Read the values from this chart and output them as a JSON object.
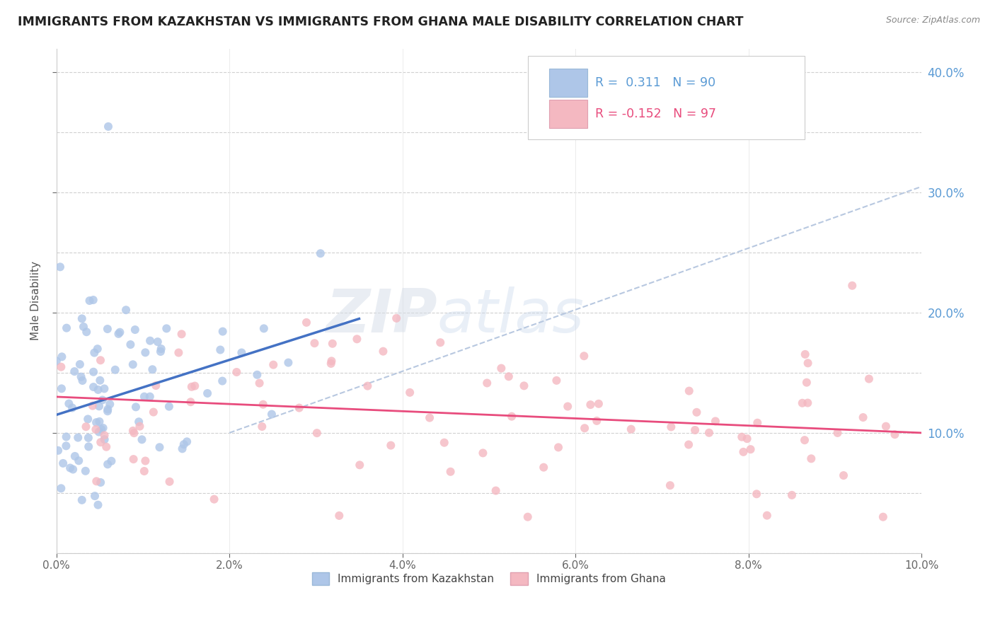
{
  "title": "IMMIGRANTS FROM KAZAKHSTAN VS IMMIGRANTS FROM GHANA MALE DISABILITY CORRELATION CHART",
  "source": "Source: ZipAtlas.com",
  "ylabel": "Male Disability",
  "xlim": [
    0.0,
    0.1
  ],
  "ylim": [
    0.0,
    0.42
  ],
  "x_ticks": [
    0.0,
    0.02,
    0.04,
    0.06,
    0.08,
    0.1
  ],
  "x_tick_labels": [
    "0.0%",
    "2.0%",
    "4.0%",
    "6.0%",
    "8.0%",
    "10.0%"
  ],
  "y_ticks": [
    0.1,
    0.2,
    0.3,
    0.4
  ],
  "y_tick_labels": [
    "10.0%",
    "20.0%",
    "30.0%",
    "40.0%"
  ],
  "y_grid_ticks": [
    0.0,
    0.05,
    0.1,
    0.15,
    0.2,
    0.25,
    0.3,
    0.35,
    0.4
  ],
  "legend_label_blue": "Immigrants from Kazakhstan",
  "legend_label_pink": "Immigrants from Ghana",
  "watermark": "ZIPatlas",
  "R_kaz": 0.311,
  "N_kaz": 90,
  "R_ghana": -0.152,
  "N_ghana": 97,
  "color_kaz": "#aec6e8",
  "color_ghana": "#f4b8c1",
  "line_color_kaz": "#4472c4",
  "line_color_ghana": "#e84c7d",
  "trend_line_dashed_color": "#b8c8e0",
  "background_color": "#ffffff",
  "grid_color": "#d0d0d0",
  "kaz_line_x0": 0.0,
  "kaz_line_y0": 0.115,
  "kaz_line_x1": 0.035,
  "kaz_line_y1": 0.195,
  "ghana_line_x0": 0.0,
  "ghana_line_y0": 0.13,
  "ghana_line_x1": 0.1,
  "ghana_line_y1": 0.1,
  "dash_line_x0": 0.02,
  "dash_line_y0": 0.1,
  "dash_line_x1": 0.1,
  "dash_line_y1": 0.305
}
